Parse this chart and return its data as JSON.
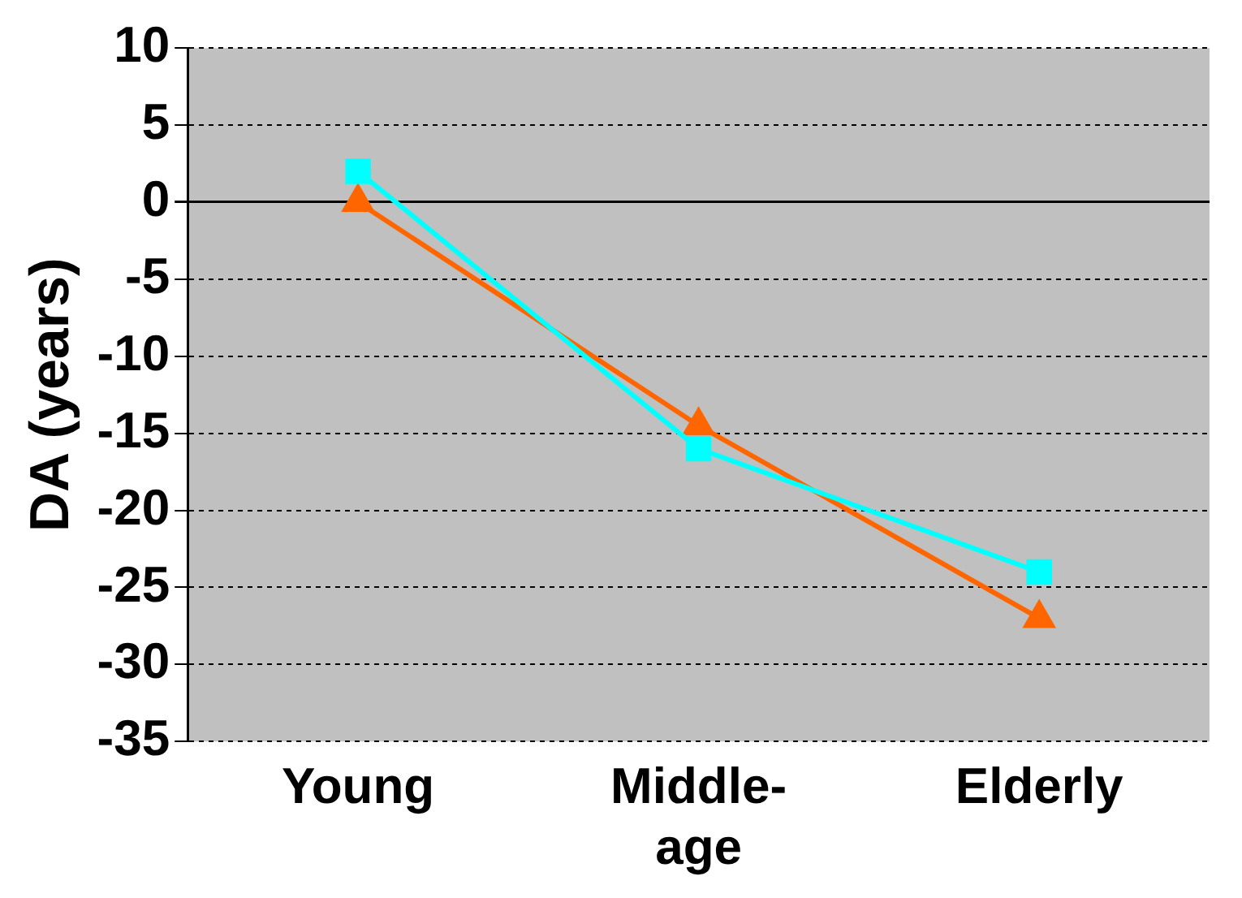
{
  "chart_data": {
    "type": "line",
    "ylabel": "DA (years)",
    "categories": [
      "Young",
      "Middle-age",
      "Elderly"
    ],
    "series": [
      {
        "color": "#00ffff",
        "marker": "square",
        "values": [
          2,
          -16,
          -24
        ]
      },
      {
        "color": "#ff6600",
        "marker": "triangle",
        "values": [
          0,
          -14.5,
          -27
        ]
      }
    ],
    "ylim": [
      -35,
      10
    ],
    "yticks": [
      -35,
      -30,
      -25,
      -20,
      -15,
      -10,
      -5,
      0,
      5,
      10
    ],
    "grid": "y",
    "legend": false
  }
}
